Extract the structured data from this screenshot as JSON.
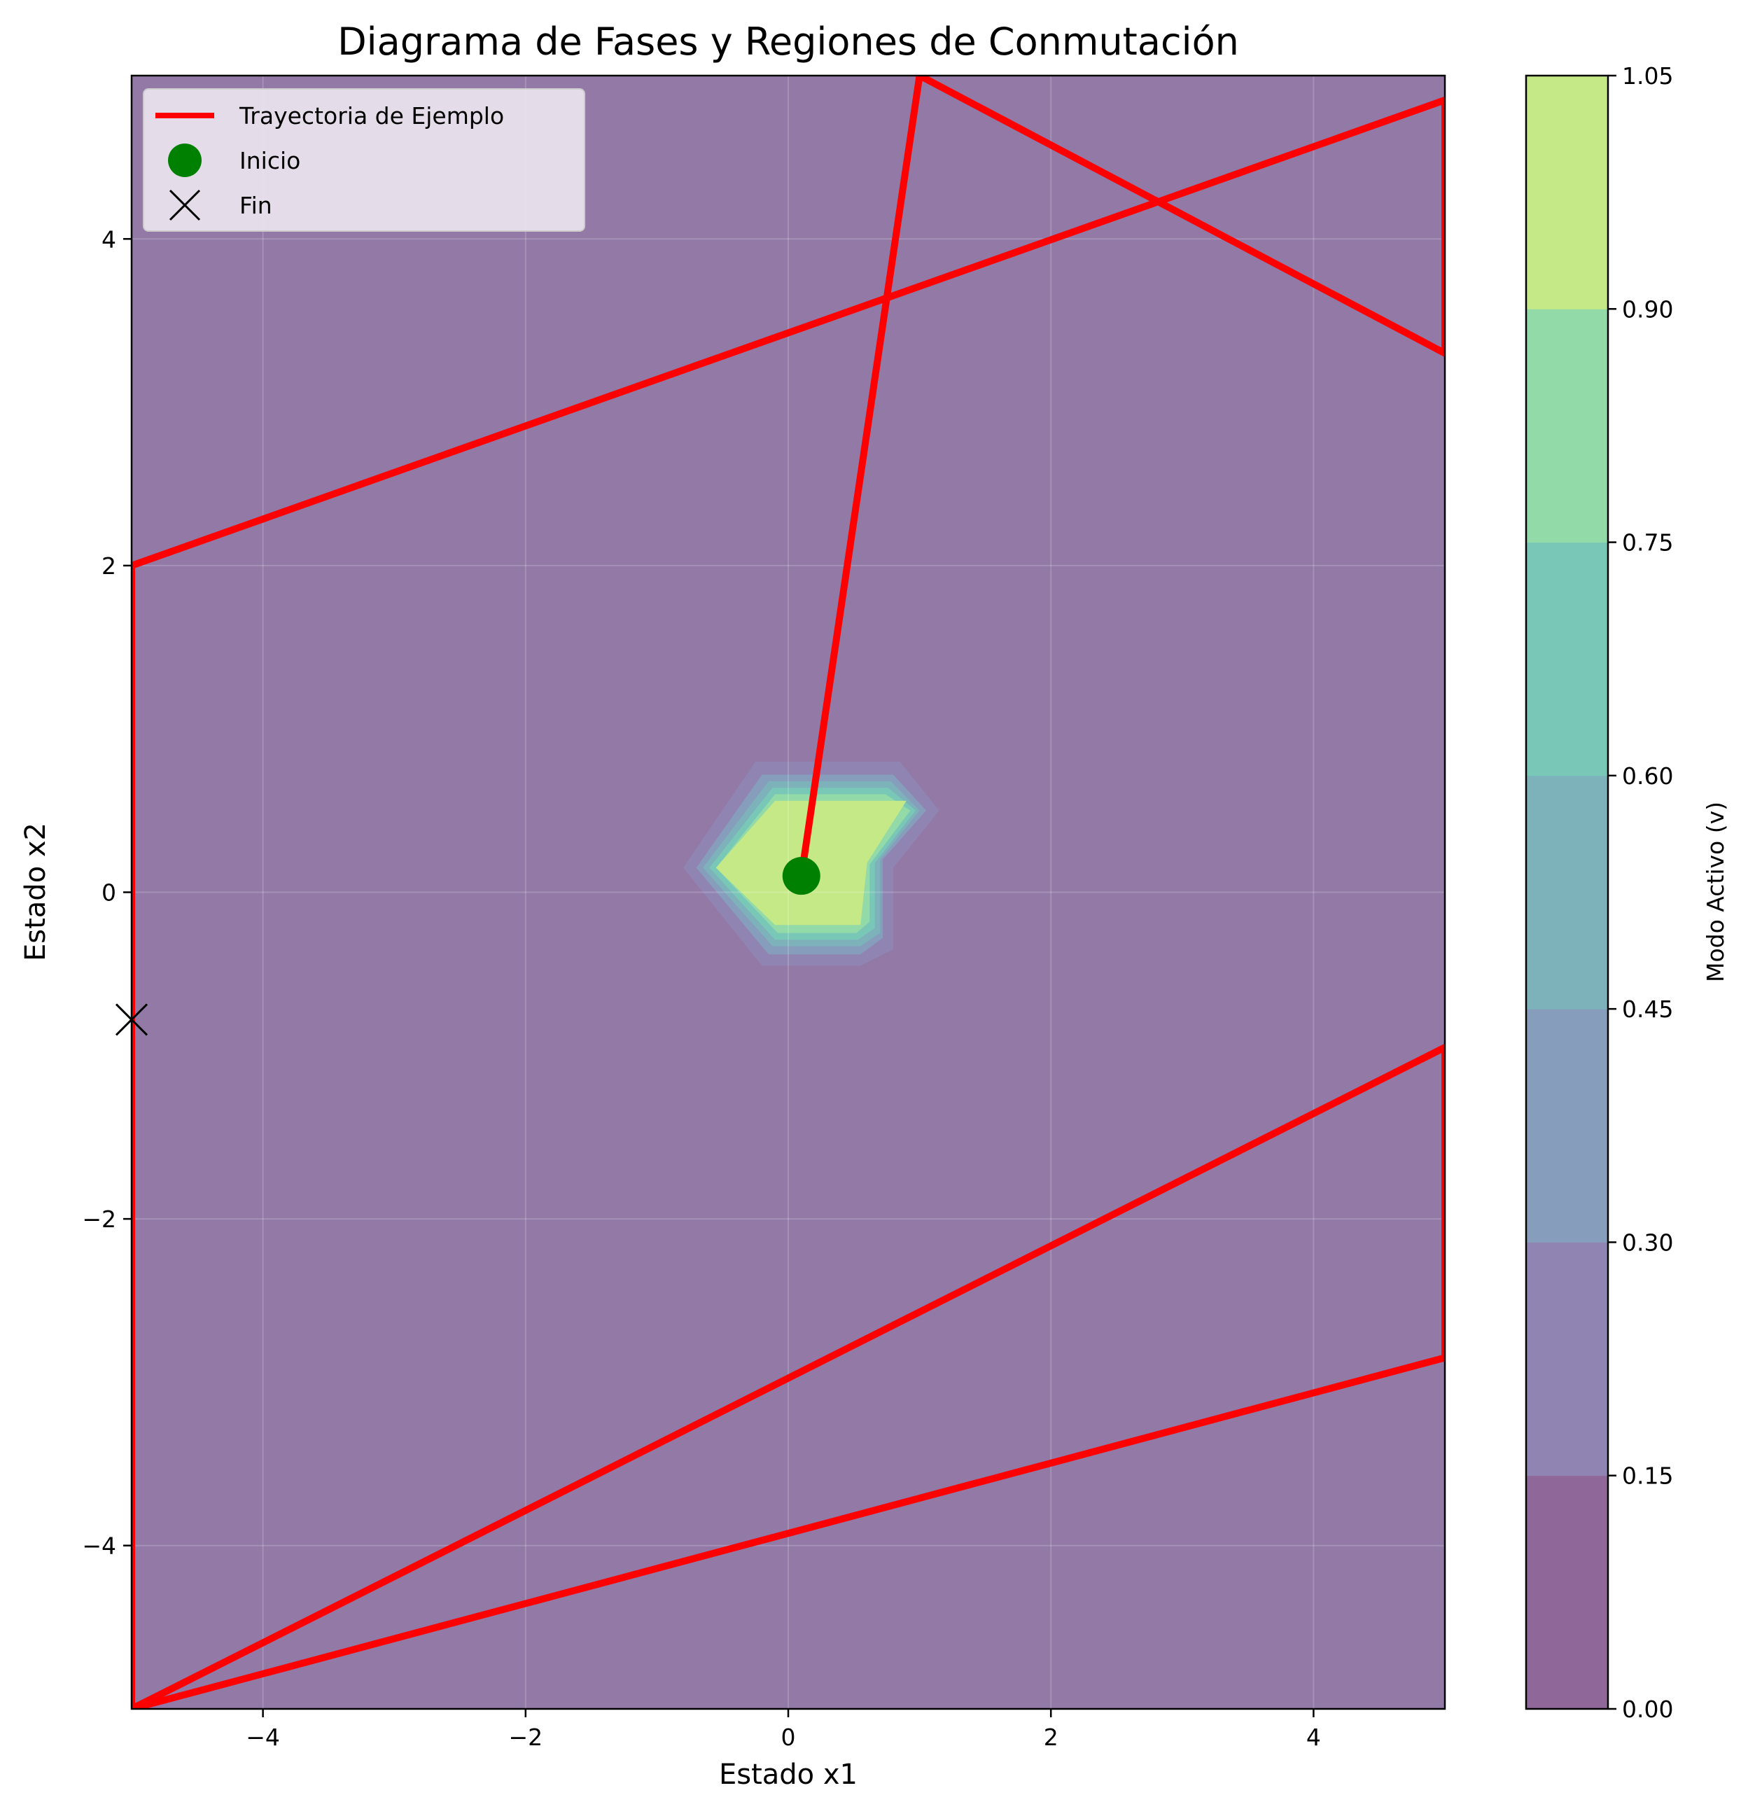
{
  "chart_data": {
    "type": "contour",
    "title": "Diagrama de Fases y Regiones de Conmutación",
    "xlabel": "Estado x1",
    "ylabel": "Estado x2",
    "xlim": [
      -5,
      5
    ],
    "ylim": [
      -5,
      5
    ],
    "xticks": [
      -4,
      -2,
      0,
      2,
      4
    ],
    "yticks": [
      -4,
      -2,
      0,
      2,
      4
    ],
    "xtick_labels": [
      "−4",
      "−2",
      "0",
      "2",
      "4"
    ],
    "ytick_labels": [
      "−4",
      "−2",
      "0",
      "2",
      "4"
    ],
    "grid": true,
    "legend_position": "top-left",
    "contour": {
      "label": "Modo Activo (v)",
      "levels": [
        0.0,
        0.15,
        0.3,
        0.45,
        0.6,
        0.75,
        0.9,
        1.05
      ],
      "level_labels": [
        "0.00",
        "0.15",
        "0.30",
        "0.45",
        "0.60",
        "0.75",
        "0.90",
        "1.05"
      ],
      "colormap": "viridis",
      "alpha": 0.6,
      "colors": [
        "#440154",
        "#46327e",
        "#365c8d",
        "#277f8e",
        "#1fa187",
        "#4ac16d",
        "#a0da39",
        "#fde725"
      ],
      "active_region_levels": [
        {
          "level": 0.15,
          "polygon": [
            [
              -0.8,
              0.15
            ],
            [
              -0.25,
              0.8
            ],
            [
              0.85,
              0.8
            ],
            [
              1.15,
              0.5
            ],
            [
              0.8,
              0.15
            ],
            [
              0.8,
              -0.35
            ],
            [
              0.55,
              -0.45
            ],
            [
              -0.2,
              -0.45
            ]
          ]
        },
        {
          "level": 0.3,
          "polygon": [
            [
              -0.7,
              0.15
            ],
            [
              -0.2,
              0.72
            ],
            [
              0.8,
              0.72
            ],
            [
              1.05,
              0.5
            ],
            [
              0.72,
              0.2
            ],
            [
              0.72,
              -0.28
            ],
            [
              0.55,
              -0.38
            ],
            [
              -0.15,
              -0.38
            ]
          ]
        },
        {
          "level": 0.45,
          "polygon": [
            [
              -0.65,
              0.15
            ],
            [
              -0.15,
              0.68
            ],
            [
              0.78,
              0.68
            ],
            [
              1.0,
              0.5
            ],
            [
              0.7,
              0.2
            ],
            [
              0.7,
              -0.25
            ],
            [
              0.55,
              -0.33
            ],
            [
              -0.12,
              -0.33
            ]
          ]
        },
        {
          "level": 0.6,
          "polygon": [
            [
              -0.6,
              0.15
            ],
            [
              -0.12,
              0.64
            ],
            [
              0.76,
              0.64
            ],
            [
              0.97,
              0.5
            ],
            [
              0.66,
              0.18
            ],
            [
              0.66,
              -0.22
            ],
            [
              0.53,
              -0.29
            ],
            [
              -0.1,
              -0.29
            ]
          ]
        },
        {
          "level": 0.75,
          "polygon": [
            [
              -0.55,
              0.15
            ],
            [
              -0.1,
              0.6
            ],
            [
              0.74,
              0.6
            ],
            [
              0.93,
              0.5
            ],
            [
              0.62,
              0.17
            ],
            [
              0.62,
              -0.18
            ],
            [
              0.52,
              -0.25
            ],
            [
              -0.08,
              -0.25
            ]
          ]
        },
        {
          "level": 0.9,
          "polygon": [
            [
              -0.55,
              0.15
            ],
            [
              -0.1,
              0.56
            ],
            [
              0.9,
              0.56
            ],
            [
              0.6,
              0.18
            ],
            [
              0.55,
              -0.2
            ],
            [
              -0.1,
              -0.2
            ]
          ]
        }
      ]
    },
    "series": [
      {
        "name": "Trayectoria de Ejemplo",
        "type": "line",
        "color": "#ff0000",
        "x": [
          0.1,
          1.0,
          5.0,
          5.0,
          -5.0,
          -5.0,
          5.0,
          5.0,
          -5.0,
          -5.0
        ],
        "y": [
          0.1,
          5.0,
          3.3,
          4.85,
          2.0,
          -5.0,
          -2.85,
          -0.95,
          -5.0,
          -0.78
        ]
      },
      {
        "name": "Inicio",
        "type": "marker",
        "marker": "circle",
        "color": "#008000",
        "x": [
          0.1
        ],
        "y": [
          0.1
        ]
      },
      {
        "name": "Fin",
        "type": "marker",
        "marker": "x",
        "color": "#000000",
        "x": [
          -5.0
        ],
        "y": [
          -0.78
        ]
      }
    ]
  }
}
